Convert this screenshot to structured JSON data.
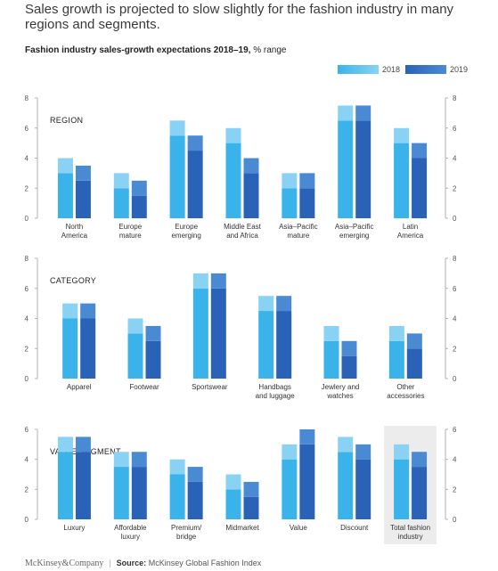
{
  "header": {
    "title": "Sales growth is projected to slow slightly for the fashion industry in many regions and segments.",
    "subtitle_bold": "Fashion industry sales-growth expectations 2018–19,",
    "subtitle_unit": "% range"
  },
  "legend": {
    "items": [
      "2018",
      "2019"
    ]
  },
  "footer": {
    "brand": "McKinsey&Company",
    "separator": "|",
    "source_label": "Source:",
    "source_text": "McKinsey Global Fashion Index"
  },
  "colors": {
    "y2018_main": "#3ab3ea",
    "y2018_light": "#8ad2f3",
    "y2019_main": "#2a62b8",
    "y2019_light": "#4a8ad2",
    "axis": "#b0b0b0",
    "highlight": "#ececec"
  },
  "chart_data": [
    {
      "type": "bar",
      "panel_label": "REGION",
      "y_ticks": [
        "0",
        "2",
        "4",
        "6",
        "8"
      ],
      "ylim": [
        0,
        8
      ],
      "categories": [
        [
          "North",
          "America"
        ],
        [
          "Europe",
          "mature"
        ],
        [
          "Europe",
          "emerging"
        ],
        [
          "Middle East",
          "and Africa"
        ],
        [
          "Asia–Pacific",
          "mature"
        ],
        [
          "Asia–Pacific",
          "emerging"
        ],
        [
          "Latin",
          "America"
        ]
      ],
      "series": [
        {
          "name": "2018",
          "ranges": [
            [
              3,
              4
            ],
            [
              2,
              3
            ],
            [
              5.5,
              6.5
            ],
            [
              5,
              6
            ],
            [
              2,
              3
            ],
            [
              6.5,
              7.5
            ],
            [
              5,
              6
            ]
          ]
        },
        {
          "name": "2019",
          "ranges": [
            [
              2.5,
              3.5
            ],
            [
              1.5,
              2.5
            ],
            [
              4.5,
              5.5
            ],
            [
              3,
              4
            ],
            [
              2,
              3
            ],
            [
              6.5,
              7.5
            ],
            [
              4,
              5
            ]
          ]
        }
      ]
    },
    {
      "type": "bar",
      "panel_label": "CATEGORY",
      "y_ticks": [
        "0",
        "2",
        "4",
        "6",
        "8"
      ],
      "ylim": [
        0,
        8
      ],
      "categories": [
        [
          "Apparel"
        ],
        [
          "Footwear"
        ],
        [
          "Sportswear"
        ],
        [
          "Handbags",
          "and luggage"
        ],
        [
          "Jewlery and",
          "watches"
        ],
        [
          "Other",
          "accessories"
        ]
      ],
      "series": [
        {
          "name": "2018",
          "ranges": [
            [
              4,
              5
            ],
            [
              3,
              4
            ],
            [
              6,
              7
            ],
            [
              4.5,
              5.5
            ],
            [
              2.5,
              3.5
            ],
            [
              2.5,
              3.5
            ]
          ]
        },
        {
          "name": "2019",
          "ranges": [
            [
              4,
              5
            ],
            [
              2.5,
              3.5
            ],
            [
              6,
              7
            ],
            [
              4.5,
              5.5
            ],
            [
              1.5,
              2.5
            ],
            [
              2,
              3
            ]
          ]
        }
      ]
    },
    {
      "type": "bar",
      "panel_label": "VALUE SEGMENT",
      "y_ticks": [
        "0",
        "2",
        "4",
        "6"
      ],
      "ylim": [
        0,
        6
      ],
      "highlight_last": true,
      "categories": [
        [
          "Luxury"
        ],
        [
          "Affordable",
          "luxury"
        ],
        [
          "Premium/",
          "bridge"
        ],
        [
          "Midmarket"
        ],
        [
          "Value"
        ],
        [
          "Discount"
        ],
        [
          "Total fashion",
          "industry"
        ]
      ],
      "series": [
        {
          "name": "2018",
          "ranges": [
            [
              4.5,
              5.5
            ],
            [
              3.5,
              4.5
            ],
            [
              3,
              4
            ],
            [
              2,
              3
            ],
            [
              4,
              5
            ],
            [
              4.5,
              5.5
            ],
            [
              4,
              5
            ]
          ]
        },
        {
          "name": "2019",
          "ranges": [
            [
              4.5,
              5.5
            ],
            [
              3.5,
              4.5
            ],
            [
              2.5,
              3.5
            ],
            [
              1.5,
              2.5
            ],
            [
              5,
              6
            ],
            [
              4,
              5
            ],
            [
              3.5,
              4.5
            ]
          ]
        }
      ]
    }
  ]
}
